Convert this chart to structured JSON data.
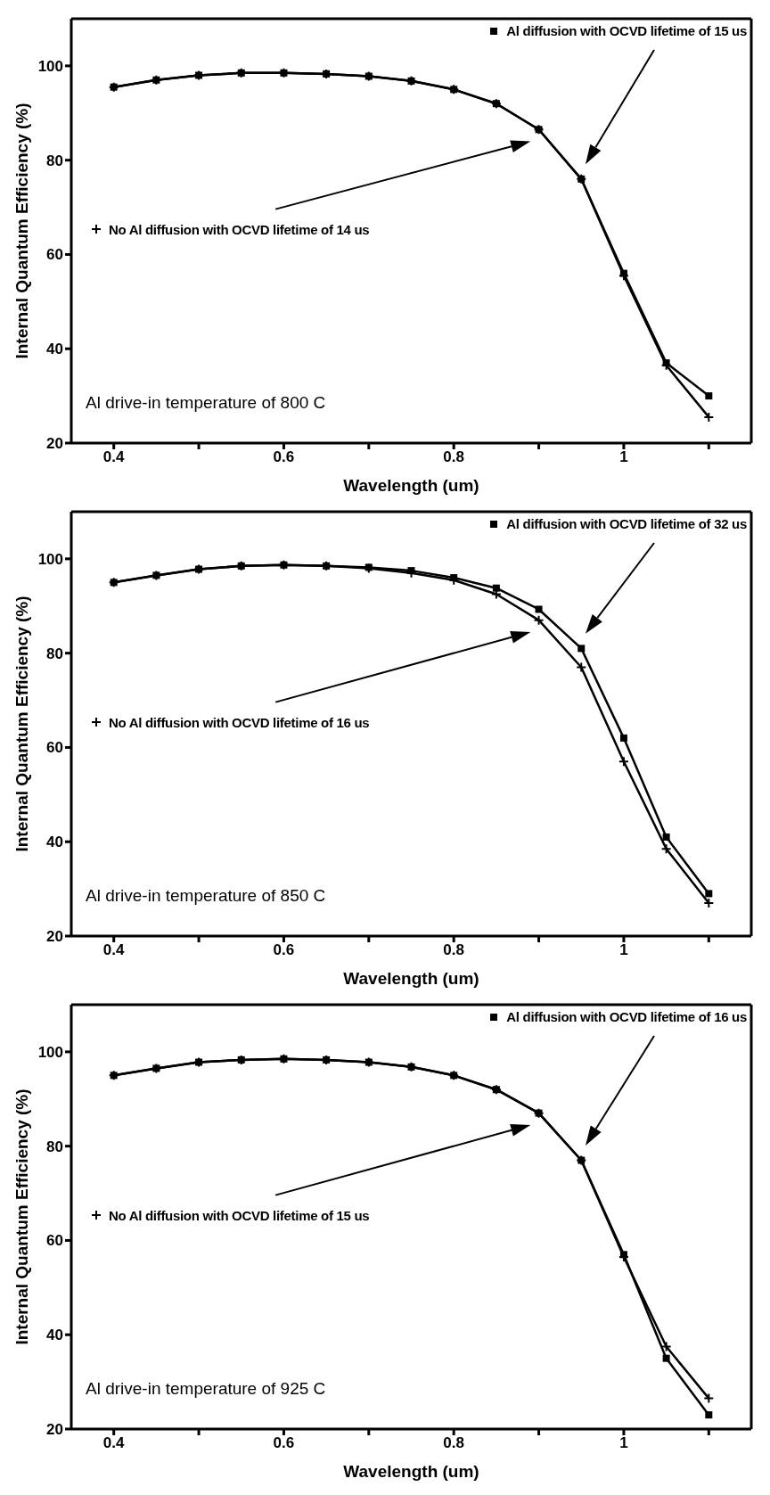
{
  "chart_data": [
    {
      "type": "line",
      "xlabel": "Wavelength (um)",
      "ylabel": "Internal Quantum Efficiency (%)",
      "x": [
        0.4,
        0.45,
        0.5,
        0.55,
        0.6,
        0.65,
        0.7,
        0.75,
        0.8,
        0.85,
        0.9,
        0.95,
        1.0,
        1.05,
        1.1
      ],
      "series": [
        {
          "name": "Al diffusion with OCVD lifetime of 15 us",
          "color": "#000000",
          "marker": "square",
          "values": [
            95.5,
            97,
            98,
            98.5,
            98.5,
            98.3,
            97.8,
            96.8,
            95,
            92,
            86.5,
            76,
            56,
            37,
            30
          ]
        },
        {
          "name": "No Al diffusion with OCVD lifetime of 14 us",
          "color": "#000000",
          "marker": "cross",
          "values": [
            95.5,
            97,
            98,
            98.5,
            98.5,
            98.3,
            97.8,
            96.8,
            95,
            92,
            86.5,
            76,
            55.5,
            36.5,
            25.5
          ]
        }
      ],
      "xlim": [
        0.35,
        1.15
      ],
      "xticks": [
        0.4,
        {
          "value": 0.5,
          "label": null
        },
        0.6,
        {
          "value": 0.7,
          "label": null
        },
        0.8,
        {
          "value": 0.9,
          "label": null
        },
        1,
        {
          "value": 1.1,
          "label": null
        }
      ],
      "ylim": [
        20,
        110
      ],
      "yticks": [
        20,
        40,
        60,
        80,
        100
      ],
      "grid": false,
      "line_style": "solid",
      "annotations": [
        "Al drive-in temperature of 800 C"
      ],
      "legend": "top right"
    },
    {
      "type": "line",
      "xlabel": "Wavelength (um)",
      "ylabel": "Internal Quantum Efficiency (%)",
      "x": [
        0.4,
        0.45,
        0.5,
        0.55,
        0.6,
        0.65,
        0.7,
        0.75,
        0.8,
        0.85,
        0.9,
        0.95,
        1.0,
        1.05,
        1.1
      ],
      "series": [
        {
          "name": "Al diffusion with OCVD lifetime of 32 us",
          "color": "#000000",
          "marker": "square",
          "values": [
            95,
            96.5,
            97.8,
            98.5,
            98.7,
            98.5,
            98.2,
            97.5,
            96,
            93.8,
            89.3,
            81,
            62,
            41,
            29
          ]
        },
        {
          "name": "No Al diffusion with OCVD lifetime of 16 us",
          "color": "#000000",
          "marker": "cross",
          "values": [
            95,
            96.5,
            97.8,
            98.5,
            98.7,
            98.5,
            98,
            97,
            95.5,
            92.5,
            87,
            77,
            57,
            38.5,
            27
          ]
        }
      ],
      "xlim": [
        0.35,
        1.15
      ],
      "xticks": [
        0.4,
        {
          "value": 0.5,
          "label": null
        },
        0.6,
        {
          "value": 0.7,
          "label": null
        },
        0.8,
        {
          "value": 0.9,
          "label": null
        },
        1,
        {
          "value": 1.1,
          "label": null
        }
      ],
      "ylim": [
        20,
        110
      ],
      "yticks": [
        20,
        40,
        60,
        80,
        100
      ],
      "grid": false,
      "line_style": "solid",
      "annotations": [
        "Al drive-in temperature of 850 C"
      ],
      "legend": "top right"
    },
    {
      "type": "line",
      "xlabel": "Wavelength (um)",
      "ylabel": "Internal Quantum Efficiency (%)",
      "x": [
        0.4,
        0.45,
        0.5,
        0.55,
        0.6,
        0.65,
        0.7,
        0.75,
        0.8,
        0.85,
        0.9,
        0.95,
        1.0,
        1.05,
        1.1
      ],
      "series": [
        {
          "name": "Al diffusion with OCVD lifetime of 16 us",
          "color": "#000000",
          "marker": "square",
          "values": [
            95,
            96.5,
            97.8,
            98.3,
            98.5,
            98.3,
            97.8,
            96.8,
            95,
            92,
            87,
            77,
            57,
            35,
            23
          ]
        },
        {
          "name": "No Al diffusion with OCVD lifetime of 15 us",
          "color": "#000000",
          "marker": "cross",
          "values": [
            95,
            96.5,
            97.8,
            98.3,
            98.5,
            98.3,
            97.8,
            96.8,
            95,
            92,
            87,
            77,
            56.5,
            37.5,
            26.5
          ]
        }
      ],
      "xlim": [
        0.35,
        1.15
      ],
      "xticks": [
        0.4,
        {
          "value": 0.5,
          "label": null
        },
        0.6,
        {
          "value": 0.7,
          "label": null
        },
        0.8,
        {
          "value": 0.9,
          "label": null
        },
        1,
        {
          "value": 1.1,
          "label": null
        }
      ],
      "ylim": [
        20,
        110
      ],
      "yticks": [
        20,
        40,
        60,
        80,
        100
      ],
      "grid": false,
      "line_style": "solid",
      "annotations": [
        "Al drive-in temperature of 925 C"
      ],
      "legend": "top right"
    }
  ]
}
